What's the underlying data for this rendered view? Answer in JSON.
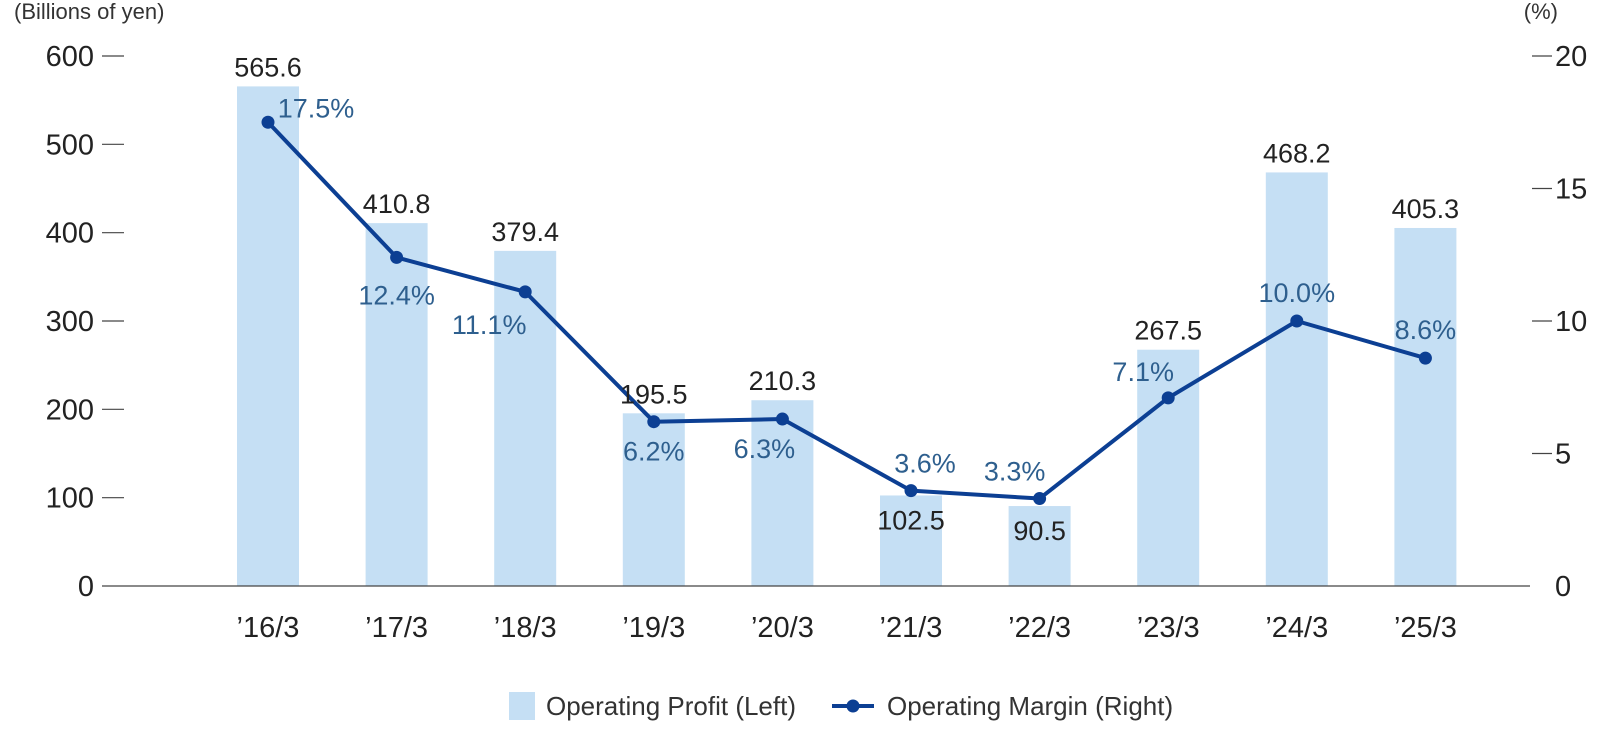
{
  "chart_data": {
    "type": "bar",
    "categories": [
      "’16/3",
      "’17/3",
      "’18/3",
      "’19/3",
      "’20/3",
      "’21/3",
      "’22/3",
      "’23/3",
      "’24/3",
      "’25/3"
    ],
    "series": [
      {
        "name": "Operating Profit (Left)",
        "type": "bar",
        "axis": "left",
        "values": [
          565.6,
          410.8,
          379.4,
          195.5,
          210.3,
          102.5,
          90.5,
          267.5,
          468.2,
          405.3
        ],
        "labels": [
          "565.6",
          "410.8",
          "379.4",
          "195.5",
          "210.3",
          "102.5",
          "90.5",
          "267.5",
          "468.2",
          "405.3"
        ],
        "color": "#c5dff4"
      },
      {
        "name": "Operating Margin (Right)",
        "type": "line",
        "axis": "right",
        "values": [
          17.5,
          12.4,
          11.1,
          6.2,
          6.3,
          3.6,
          3.3,
          7.1,
          10.0,
          8.6
        ],
        "labels": [
          "17.5%",
          "12.4%",
          "11.1%",
          "6.2%",
          "6.3%",
          "3.6%",
          "3.3%",
          "7.1%",
          "10.0%",
          "8.6%"
        ],
        "color": "#0c3f93"
      }
    ],
    "left_axis": {
      "unit_label": "(Billions of yen)",
      "range": [
        0,
        600
      ],
      "ticks": [
        "0",
        "100",
        "200",
        "300",
        "400",
        "500",
        "600"
      ]
    },
    "right_axis": {
      "unit_label": "(%)",
      "range": [
        0,
        20
      ],
      "ticks": [
        "0",
        "5",
        "10",
        "15",
        "20"
      ]
    },
    "grid": false,
    "legend_position": "bottom-center",
    "label_color": "#2e5f8e"
  }
}
